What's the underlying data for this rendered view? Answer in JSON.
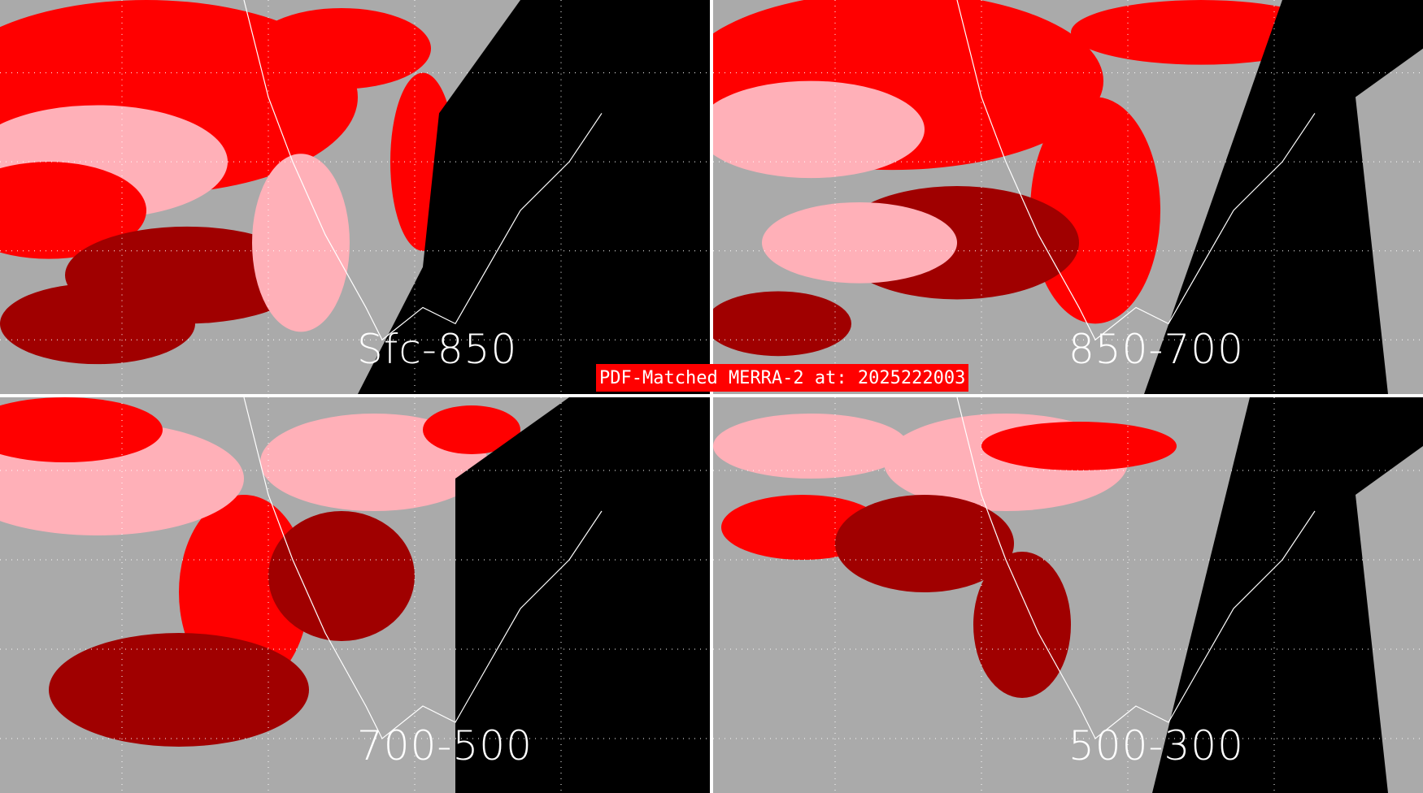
{
  "title": "PDF-Matched MERRA-2 at: 2025222003",
  "panels": [
    {
      "label": "Sfc-850"
    },
    {
      "label": "850-700"
    },
    {
      "label": "700-500"
    },
    {
      "label": "500-300"
    }
  ],
  "colors": {
    "high": "#ff0000",
    "medium": "#ffb0b8",
    "low": "#a00000",
    "minimal": "#aaaaaa",
    "missing": "#000000",
    "boundaries": "#ffffff"
  }
}
